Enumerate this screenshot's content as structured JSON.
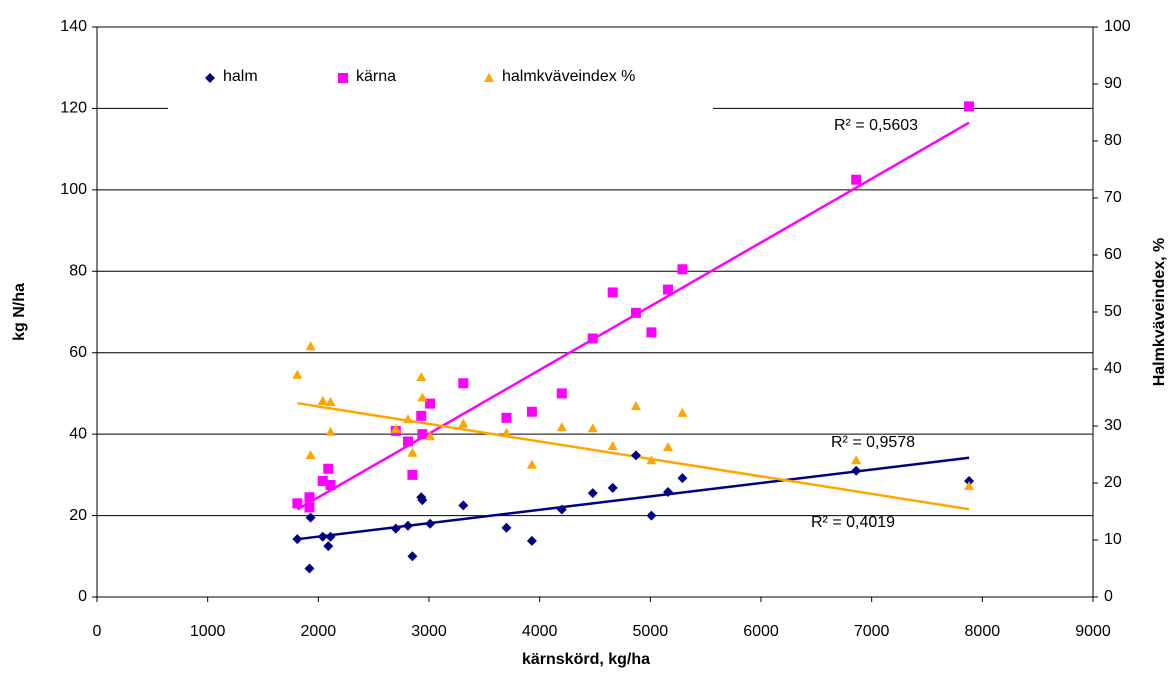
{
  "chart_data": {
    "type": "scatter",
    "x_label": "kärnskörd, kg/ha",
    "y_label": "kg N/ha",
    "y2_label": "Halmkväveindex, %",
    "xlim": [
      0,
      9000
    ],
    "xticks": [
      0,
      1000,
      2000,
      3000,
      4000,
      5000,
      6000,
      7000,
      8000,
      9000
    ],
    "ylim": [
      0,
      140
    ],
    "yticks": [
      0,
      20,
      40,
      60,
      80,
      100,
      120,
      140
    ],
    "y2lim": [
      0,
      100
    ],
    "y2ticks": [
      0,
      10,
      20,
      30,
      40,
      50,
      60,
      70,
      80,
      90,
      100
    ],
    "grid": true,
    "legend": "top",
    "series": [
      {
        "name": "halm",
        "color": "#000080",
        "marker": "diamond",
        "x": [
          1810,
          1920,
          1930,
          2040,
          2090,
          2110,
          2700,
          2810,
          2850,
          2930,
          2940,
          3010,
          3310,
          3700,
          3930,
          4200,
          4480,
          4660,
          4870,
          5010,
          5160,
          5290,
          6860,
          7880
        ],
        "values": [
          14.2,
          7,
          19.5,
          14.8,
          12.5,
          14.8,
          16.8,
          17.5,
          10,
          24.5,
          23.8,
          18,
          22.5,
          17,
          13.8,
          21.5,
          25.5,
          26.8,
          34.8,
          20,
          25.8,
          29.2,
          31,
          28.5
        ]
      },
      {
        "name": "kärna",
        "color": "#ff00ff",
        "marker": "square",
        "x": [
          1810,
          1920,
          1920,
          2040,
          2090,
          2110,
          2700,
          2810,
          2850,
          2930,
          2940,
          3010,
          3310,
          3700,
          3930,
          4200,
          4480,
          4660,
          4870,
          5010,
          5160,
          5290,
          6860,
          7880
        ],
        "values": [
          23,
          24.5,
          22,
          28.5,
          31.5,
          27.5,
          40.8,
          38.2,
          30,
          44.5,
          40,
          47.5,
          52.5,
          44,
          45.5,
          50,
          63.5,
          74.8,
          69.8,
          65,
          75.5,
          80.5,
          102.5,
          120.5
        ]
      },
      {
        "name": "halmkväveindex %",
        "color": "#ffa500",
        "marker": "triangle",
        "axis": "y2",
        "x": [
          1810,
          1930,
          1930,
          2040,
          2110,
          2110,
          2700,
          2810,
          2850,
          2930,
          2940,
          3010,
          3310,
          3700,
          3930,
          4200,
          4480,
          4660,
          4870,
          5010,
          5160,
          5290,
          6860,
          7880
        ],
        "values": [
          39,
          44,
          24.9,
          34.4,
          34.2,
          29,
          29.5,
          31.2,
          25.3,
          38.6,
          35,
          28.2,
          30.4,
          28.8,
          23.2,
          29.8,
          29.6,
          26.5,
          33.5,
          24,
          26.3,
          32.3,
          24,
          19.5
        ]
      }
    ],
    "trendlines": [
      {
        "color": "#000080",
        "x": [
          1810,
          7880
        ],
        "values": [
          14.2,
          34.2
        ],
        "label": "R² = 0,4019"
      },
      {
        "color": "#ff00ff",
        "x": [
          1810,
          7880
        ],
        "values": [
          21.5,
          116.5
        ],
        "label": "R² = 0,9578"
      },
      {
        "color": "#ffa500",
        "axis": "y2",
        "x": [
          1810,
          7880
        ],
        "values": [
          34,
          15.4
        ],
        "label": "R² = 0,5603"
      }
    ]
  }
}
